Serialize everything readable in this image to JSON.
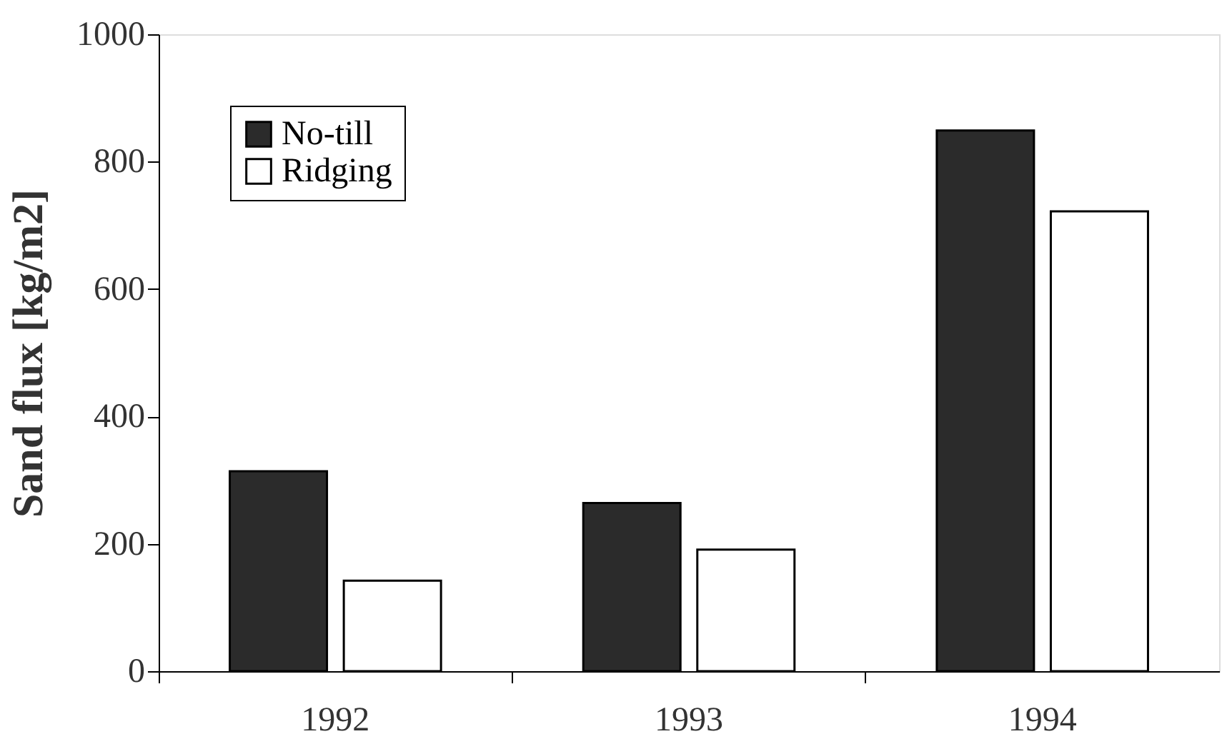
{
  "chart_data": {
    "type": "bar",
    "ylabel": "Sand flux [kg/m2]",
    "categories": [
      "1992",
      "1993",
      "1994"
    ],
    "series": [
      {
        "name": "No-till",
        "color": "#2b2b2b",
        "values": [
          314,
          264,
          849
        ]
      },
      {
        "name": "Ridging",
        "color": "#ffffff",
        "values": [
          142,
          191,
          722
        ]
      }
    ],
    "ylim": [
      0,
      1000
    ],
    "yticks": [
      0,
      200,
      400,
      600,
      800,
      1000
    ],
    "grid": false,
    "legend": "top left"
  }
}
